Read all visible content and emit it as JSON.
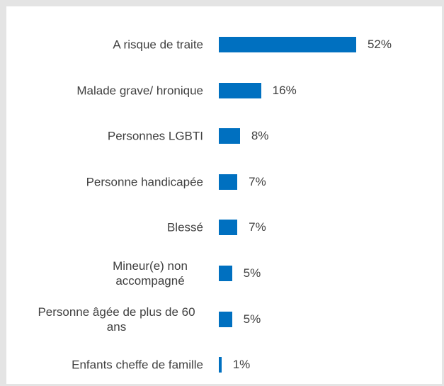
{
  "chart_data": {
    "type": "bar",
    "orientation": "horizontal",
    "color": "#0070c0",
    "categories": [
      "A risque de traite",
      "Malade grave/ hronique",
      "Personnes LGBTI",
      "Personne handicapée",
      "Blessé",
      "Mineur(e) non accompagné",
      "Personne âgée de plus de 60 ans",
      "Enfants cheffe de famille"
    ],
    "values": [
      52,
      16,
      8,
      7,
      7,
      5,
      5,
      1
    ],
    "value_labels": [
      "52%",
      "16%",
      "8%",
      "7%",
      "7%",
      "5%",
      "5%",
      "1%"
    ]
  }
}
